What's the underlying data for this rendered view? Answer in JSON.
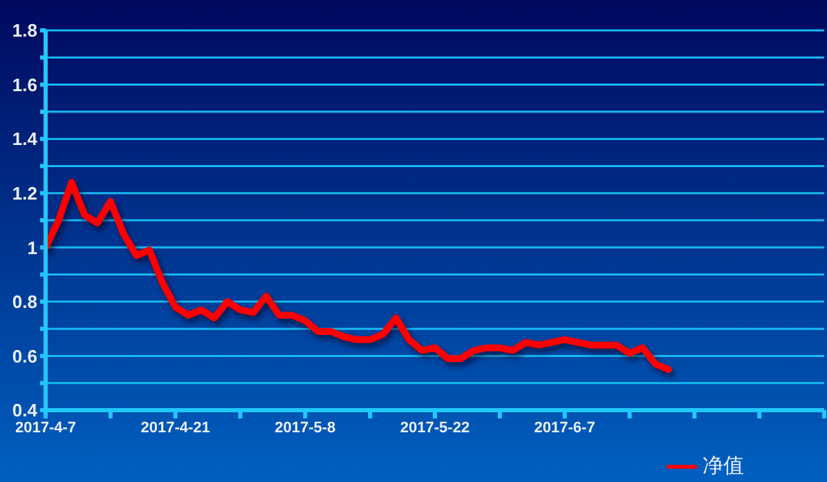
{
  "chart_data": {
    "type": "line",
    "categories": [
      "2017-4-7",
      null,
      null,
      null,
      null,
      null,
      null,
      null,
      null,
      null,
      "2017-4-21",
      null,
      null,
      null,
      null,
      null,
      null,
      null,
      null,
      null,
      "2017-5-8",
      null,
      null,
      null,
      null,
      null,
      null,
      null,
      null,
      null,
      "2017-5-22",
      null,
      null,
      null,
      null,
      null,
      null,
      null,
      null,
      null,
      "2017-6-7",
      null,
      null,
      null,
      null,
      null,
      null,
      null,
      null,
      null,
      null,
      null,
      null,
      null,
      null,
      null,
      null,
      null,
      null,
      null,
      null
    ],
    "series": [
      {
        "name": "净值",
        "color": "#ff0000",
        "values": [
          1.0,
          1.1,
          1.24,
          1.12,
          1.09,
          1.17,
          1.05,
          0.97,
          0.99,
          0.87,
          0.78,
          0.75,
          0.77,
          0.74,
          0.8,
          0.77,
          0.76,
          0.82,
          0.75,
          0.75,
          0.73,
          0.69,
          0.69,
          0.67,
          0.66,
          0.66,
          0.68,
          0.74,
          0.66,
          0.62,
          0.63,
          0.59,
          0.59,
          0.62,
          0.63,
          0.63,
          0.62,
          0.65,
          0.64,
          0.65,
          0.66,
          0.65,
          0.64,
          0.64,
          0.64,
          0.61,
          0.63,
          0.57,
          0.55,
          null,
          null,
          null,
          null,
          null,
          null,
          null,
          null,
          null,
          null,
          null,
          null
        ]
      }
    ],
    "ylim": [
      0.4,
      1.8
    ],
    "yticks": [
      0.4,
      {
        "value": 0.5,
        "label": null
      },
      0.6,
      {
        "value": 0.7,
        "label": null
      },
      0.8,
      {
        "value": 0.9,
        "label": null
      },
      1,
      {
        "value": 1.1,
        "label": null
      },
      1.2,
      {
        "value": 1.3,
        "label": null
      },
      1.4,
      {
        "value": 1.5,
        "label": null
      },
      1.6,
      {
        "value": 1.7,
        "label": null
      },
      1.8
    ],
    "grid": "y",
    "legend": "bottom right",
    "marker": "none",
    "line_style": "solid"
  }
}
